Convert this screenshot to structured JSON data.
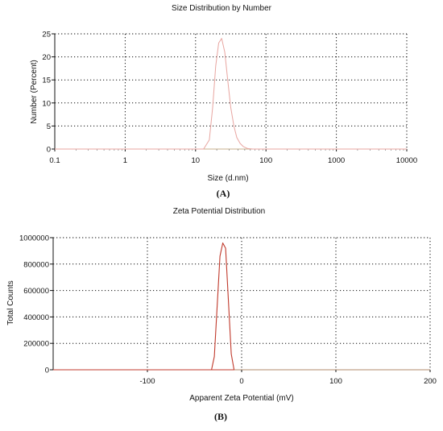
{
  "colors": {
    "curve_a": "#e8a5a0",
    "curve_b": "#c0392b",
    "grid": "#111111",
    "baseline_a": "#c9b28c",
    "baseline_b": "#b08a6a"
  },
  "captions": [
    "(A)",
    "(B)"
  ],
  "chart_data": [
    {
      "type": "line",
      "title": "Size Distribution by Number",
      "xlabel": "Size (d.nm)",
      "ylabel": "Number (Percent)",
      "xscale": "log",
      "xlim": [
        0.1,
        10000
      ],
      "ylim": [
        0,
        25
      ],
      "xticks": [
        0.1,
        1,
        10,
        100,
        1000,
        10000
      ],
      "xtick_labels": [
        "0.1",
        "1",
        "10",
        "100",
        "1000",
        "10000"
      ],
      "yticks": [
        0,
        5,
        10,
        15,
        20,
        25
      ],
      "ytick_labels": [
        "0",
        "5",
        "10",
        "15",
        "20",
        "25"
      ],
      "grid": true,
      "series": [
        {
          "x": [
            0.1,
            13,
            15.7,
            17.5,
            19.3,
            21.3,
            23.5,
            26,
            28.6,
            31.6,
            35,
            38.5,
            43,
            48,
            55,
            65,
            10000
          ],
          "y": [
            0,
            0,
            2,
            9,
            18,
            23,
            24,
            21,
            15,
            9,
            5,
            2.5,
            1.2,
            0.5,
            0.1,
            0,
            0
          ]
        }
      ]
    },
    {
      "type": "line",
      "title": "Zeta Potential Distribution",
      "xlabel": "Apparent Zeta Potential (mV)",
      "ylabel": "Total Counts",
      "xlim": [
        -200,
        200
      ],
      "ylim": [
        0,
        1000000
      ],
      "xticks": [
        -100,
        0,
        100,
        200
      ],
      "xtick_labels": [
        "-100",
        "0",
        "100",
        "200"
      ],
      "yticks": [
        0,
        200000,
        400000,
        600000,
        800000,
        1000000
      ],
      "ytick_labels": [
        "0",
        "200000",
        "400000",
        "600000",
        "800000",
        "1000000"
      ],
      "grid": true,
      "series": [
        {
          "x": [
            -200,
            -32,
            -29,
            -26,
            -23,
            -20,
            -17,
            -14,
            -11,
            -8,
            -200
          ],
          "y": [
            0,
            0,
            100000,
            480000,
            860000,
            960000,
            920000,
            520000,
            120000,
            0,
            0
          ]
        }
      ]
    }
  ]
}
